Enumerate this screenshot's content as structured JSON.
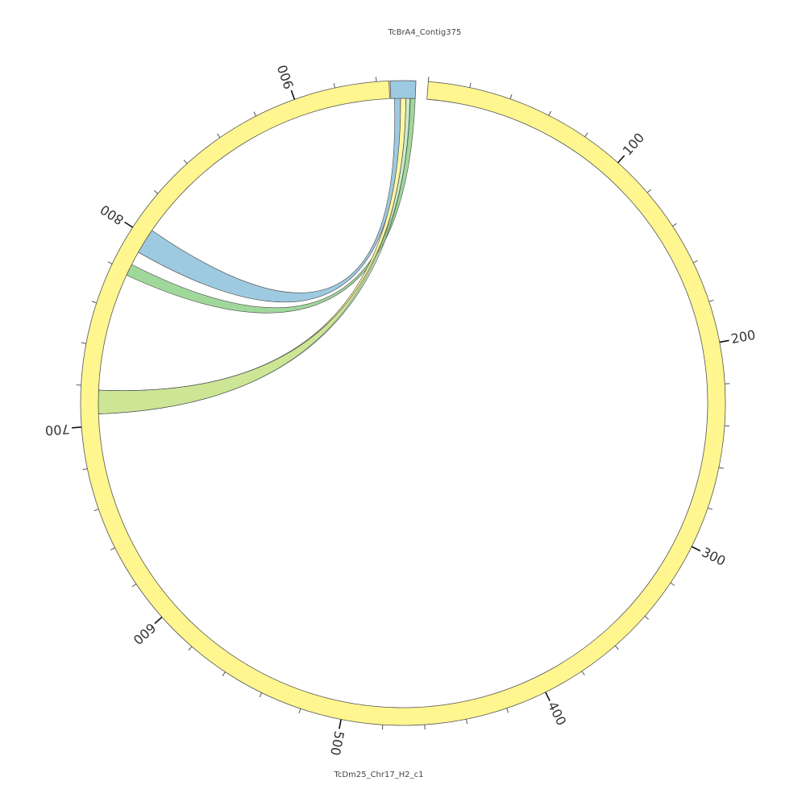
{
  "chart_data": {
    "type": "chord",
    "sequences": [
      {
        "id": "contig",
        "name": "TcBrA4_Contig375",
        "color": "#9ecae1",
        "start_angle_deg": -2.3,
        "end_angle_deg": 2.3
      },
      {
        "id": "chr",
        "name": "TcDm25_Chr17_H2_c1",
        "color": "#fff68f",
        "start_angle_deg": 4.5,
        "end_angle_deg": 357.5,
        "length": 946
      }
    ],
    "major_ticks": [
      100,
      200,
      300,
      400,
      500,
      600,
      700,
      800,
      900
    ],
    "minor_tick_step": 20,
    "links": [
      {
        "color": "#9ecae1",
        "opacity": 1.0,
        "contig_range": [
          0.15,
          0.4
        ],
        "chr_range": [
          791,
          804
        ]
      },
      {
        "color": "#8fd18a",
        "opacity": 0.85,
        "contig_range": [
          0.78,
          1.0
        ],
        "chr_range": [
          778,
          784
        ]
      },
      {
        "color": "#fff68f",
        "opacity": 0.85,
        "contig_range": [
          0.4,
          0.62
        ],
        "chr_range": [
          706,
          718
        ]
      },
      {
        "color": "#8fd18a",
        "opacity": 0.45,
        "contig_range": [
          0.62,
          0.8
        ],
        "chr_range": [
          706,
          718
        ]
      }
    ]
  }
}
